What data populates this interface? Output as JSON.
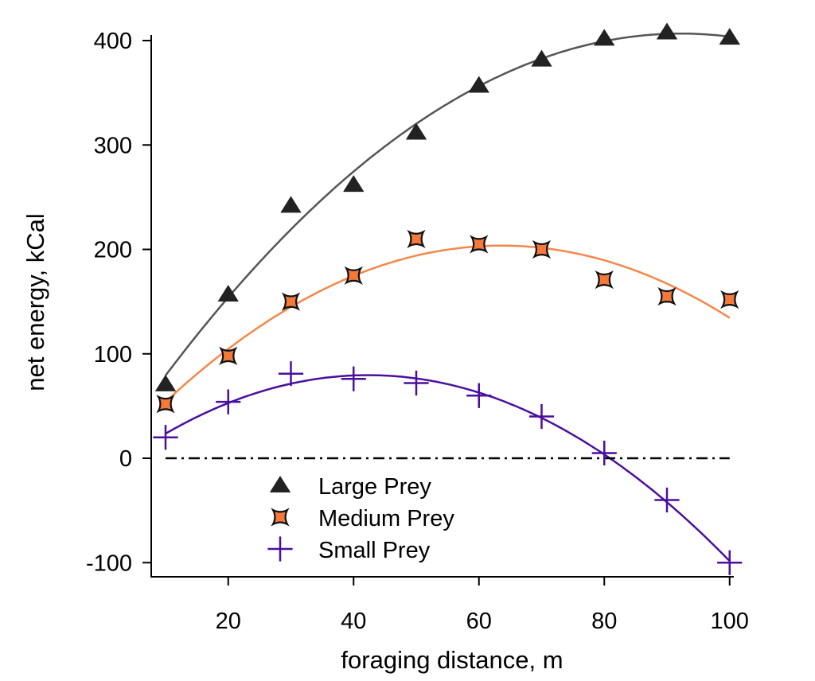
{
  "chart_data": {
    "type": "scatter",
    "title": "",
    "xlabel": "foraging distance, m",
    "ylabel": "net energy, kCal",
    "xlim": [
      7.7,
      100.5
    ],
    "ylim": [
      -113.5,
      404.6
    ],
    "xticks": [
      20,
      40,
      60,
      80,
      100
    ],
    "yticks": [
      -100,
      0,
      100,
      200,
      300,
      400
    ],
    "grid": false,
    "legend_position": "bottom-center",
    "reference_line": {
      "y": 0,
      "style": "dash-dot",
      "from_x": 10,
      "to_x": 100
    },
    "fit": "quadratic",
    "x": [
      10,
      20,
      30,
      40,
      50,
      60,
      70,
      80,
      90,
      100
    ],
    "series": [
      {
        "name": "Large Prey",
        "marker": "triangle",
        "color": "#222222",
        "line_color": "#555555",
        "values": [
          71,
          157,
          242,
          262,
          312,
          357,
          382,
          402,
          408,
          403
        ]
      },
      {
        "name": "Medium Prey",
        "marker": "concave-square",
        "color": "#f47a3c",
        "line_color": "#f5874a",
        "values": [
          52,
          98,
          150,
          175,
          210,
          205,
          200,
          171,
          155,
          152
        ]
      },
      {
        "name": "Small Prey",
        "marker": "plus",
        "color": "#4b0f9e",
        "line_color": "#4b0f9e",
        "values": [
          20,
          54,
          81,
          76,
          72,
          60,
          40,
          5,
          -40,
          -100
        ]
      }
    ]
  }
}
